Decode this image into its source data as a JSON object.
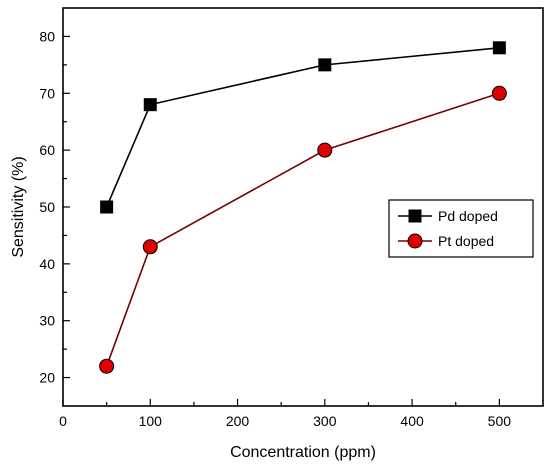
{
  "chart_data": {
    "type": "line",
    "xlabel": "Concentration (ppm)",
    "ylabel": "Sensitivity (%)",
    "xlim": [
      0,
      550
    ],
    "ylim": [
      15,
      85
    ],
    "x_ticks": [
      0,
      100,
      200,
      300,
      400,
      500
    ],
    "y_ticks": [
      20,
      30,
      40,
      50,
      60,
      70,
      80
    ],
    "grid": false,
    "legend_position": "right",
    "series": [
      {
        "name": "Pd doped",
        "marker": "square",
        "marker_color": "#000000",
        "line_color": "#000000",
        "x": [
          50,
          100,
          300,
          500
        ],
        "y": [
          50,
          68,
          75,
          78
        ]
      },
      {
        "name": "Pt doped",
        "marker": "circle",
        "marker_color": "#e00000",
        "line_color": "#7a0000",
        "x": [
          50,
          100,
          300,
          500
        ],
        "y": [
          22,
          43,
          60,
          70
        ]
      }
    ]
  }
}
